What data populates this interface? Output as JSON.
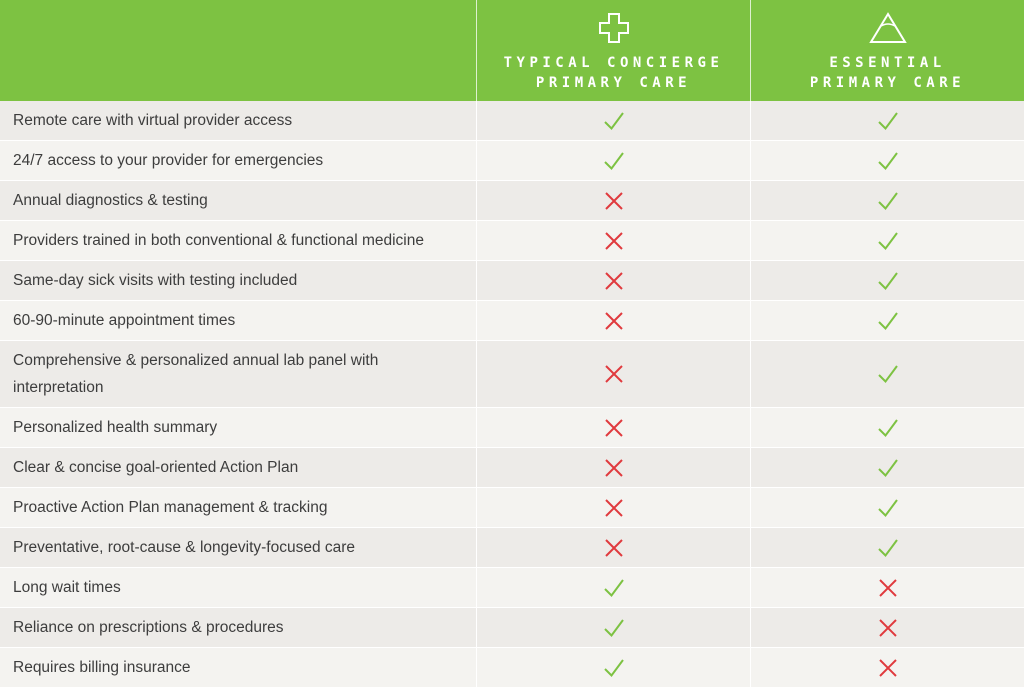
{
  "colors": {
    "header_bg": "#7dc242",
    "check": "#7dc242",
    "cross": "#e03a3e",
    "row_dark": "#edebe8",
    "row_light": "#f4f3f0"
  },
  "columns": [
    {
      "title": "TYPICAL CONCIERGE\nPRIMARY CARE",
      "icon": "medical-cross-icon"
    },
    {
      "title": "ESSENTIAL\nPRIMARY CARE",
      "icon": "triangle-icon"
    }
  ],
  "rows": [
    {
      "feature": "Remote care with virtual provider access",
      "concierge": "check",
      "essential": "check"
    },
    {
      "feature": "24/7 access to your provider for emergencies",
      "concierge": "check",
      "essential": "check"
    },
    {
      "feature": "Annual diagnostics & testing",
      "concierge": "cross",
      "essential": "check"
    },
    {
      "feature": "Providers trained in both conventional & functional medicine",
      "concierge": "cross",
      "essential": "check"
    },
    {
      "feature": "Same-day sick visits with testing included",
      "concierge": "cross",
      "essential": "check"
    },
    {
      "feature": "60-90-minute appointment times",
      "concierge": "cross",
      "essential": "check"
    },
    {
      "feature": "Comprehensive & personalized annual lab panel with interpretation",
      "concierge": "cross",
      "essential": "check"
    },
    {
      "feature": "Personalized health summary",
      "concierge": "cross",
      "essential": "check"
    },
    {
      "feature": "Clear & concise goal-oriented Action Plan",
      "concierge": "cross",
      "essential": "check"
    },
    {
      "feature": "Proactive Action Plan management & tracking",
      "concierge": "cross",
      "essential": "check"
    },
    {
      "feature": "Preventative, root-cause & longevity-focused care",
      "concierge": "cross",
      "essential": "check"
    },
    {
      "feature": "Long wait times",
      "concierge": "check",
      "essential": "cross"
    },
    {
      "feature": "Reliance on prescriptions & procedures",
      "concierge": "check",
      "essential": "cross"
    },
    {
      "feature": "Requires billing insurance",
      "concierge": "check",
      "essential": "cross"
    }
  ]
}
